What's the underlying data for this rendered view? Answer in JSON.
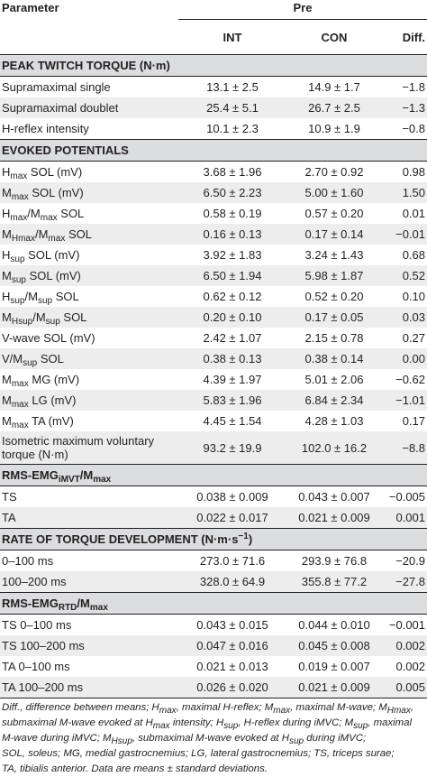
{
  "header": {
    "parameter": "Parameter",
    "pre": "Pre",
    "int": "INT",
    "con": "CON",
    "diff": "Diff."
  },
  "sections": {
    "peak": "PEAK TWITCH TORQUE (N·m)",
    "evoked": "EVOKED POTENTIALS",
    "rms_imvt": {
      "a": "RMS-EMG",
      "sub": "iMVT",
      "b": "/M",
      "sub2": "max"
    },
    "rtd": {
      "a": "RATE OF TORQUE DEVELOPMENT (N·m·s",
      "sup": "−1",
      "b": ")"
    },
    "rms_rtd": {
      "a": "RMS-EMG",
      "sub": "RTD",
      "b": "/M",
      "sub2": "max"
    }
  },
  "rows": {
    "r1": {
      "label": "Supramaximal single",
      "int": "13.1 ± 2.5",
      "con": "14.9 ± 1.7",
      "diff": "−1.8"
    },
    "r2": {
      "label": "Supramaximal doublet",
      "int": "25.4 ± 5.1",
      "con": "26.7 ± 2.5",
      "diff": "−1.3"
    },
    "r3": {
      "label": "H-reflex intensity",
      "int": "10.1 ± 2.3",
      "con": "10.9 ± 1.9",
      "diff": "−0.8"
    },
    "r4": {
      "pre": "H",
      "sub": "max",
      "post": " SOL (mV)",
      "int": "3.68 ± 1.96",
      "con": "2.70 ± 0.92",
      "diff": "0.98"
    },
    "r5": {
      "pre": "M",
      "sub": "max",
      "post": " SOL (mV)",
      "int": "6.50 ± 2.23",
      "con": "5.00 ± 1.60",
      "diff": "1.50"
    },
    "r6": {
      "pre": "H",
      "sub": "max",
      "mid": "/M",
      "sub2": "max",
      "post": " SOL",
      "int": "0.58 ± 0.19",
      "con": "0.57 ± 0.20",
      "diff": "0.01"
    },
    "r7": {
      "pre": "M",
      "sub": "Hmax",
      "mid": "/M",
      "sub2": "max",
      "post": " SOL",
      "int": "0.16 ± 0.13",
      "con": "0.17 ± 0.14",
      "diff": "−0.01"
    },
    "r8": {
      "pre": "H",
      "sub": "sup",
      "post": " SOL (mV)",
      "int": "3.92 ± 1.83",
      "con": "3.24 ± 1.43",
      "diff": "0.68"
    },
    "r9": {
      "pre": "M",
      "sub": "sup",
      "post": " SOL (mV)",
      "int": "6.50 ± 1.94",
      "con": "5.98 ± 1.87",
      "diff": "0.52"
    },
    "r10": {
      "pre": "H",
      "sub": "sup",
      "mid": "/M",
      "sub2": "sup",
      "post": " SOL",
      "int": "0.62 ± 0.12",
      "con": "0.52 ± 0.20",
      "diff": "0.10"
    },
    "r11": {
      "pre": "M",
      "sub": "Hsup",
      "mid": "/M",
      "sub2": "sup",
      "post": " SOL",
      "int": "0.20 ± 0.10",
      "con": "0.17 ± 0.05",
      "diff": "0.03"
    },
    "r12": {
      "label": "V-wave SOL (mV)",
      "int": "2.42 ± 1.07",
      "con": "2.15 ± 0.78",
      "diff": "0.27"
    },
    "r13": {
      "pre": "V/M",
      "sub": "sup",
      "post": " SOL",
      "int": "0.38 ± 0.13",
      "con": "0.38 ± 0.14",
      "diff": "0.00"
    },
    "r14": {
      "pre": "M",
      "sub": "max",
      "post": " MG (mV)",
      "int": "4.39 ± 1.97",
      "con": "5.01 ± 2.06",
      "diff": "−0.62"
    },
    "r15": {
      "pre": "M",
      "sub": "max",
      "post": " LG (mV)",
      "int": "5.83 ± 1.96",
      "con": "6.84 ± 2.34",
      "diff": "−1.01"
    },
    "r16": {
      "pre": "M",
      "sub": "max",
      "post": " TA (mV)",
      "int": "4.45 ± 1.54",
      "con": "4.28 ± 1.03",
      "diff": "0.17"
    },
    "r17": {
      "label": "Isometric maximum voluntary torque (N·m)",
      "int": "93.2 ± 19.9",
      "con": "102.0 ± 16.2",
      "diff": "−8.8"
    },
    "r18": {
      "label": "TS",
      "int": "0.038 ± 0.009",
      "con": "0.043 ± 0.007",
      "diff": "−0.005"
    },
    "r19": {
      "label": "TA",
      "int": "0.022 ± 0.017",
      "con": "0.021 ± 0.009",
      "diff": "0.001"
    },
    "r20": {
      "label": "0–100 ms",
      "int": "273.0 ± 71.6",
      "con": "293.9 ± 76.8",
      "diff": "−20.9"
    },
    "r21": {
      "label": "100–200 ms",
      "int": "328.0 ± 64.9",
      "con": "355.8 ± 77.2",
      "diff": "−27.8"
    },
    "r22": {
      "label": "TS 0–100 ms",
      "int": "0.043 ± 0.015",
      "con": "0.044 ± 0.010",
      "diff": "−0.001"
    },
    "r23": {
      "label": "TS 100–200 ms",
      "int": "0.047 ± 0.016",
      "con": "0.045 ± 0.008",
      "diff": "0.002"
    },
    "r24": {
      "label": "TA 0–100 ms",
      "int": "0.021 ± 0.013",
      "con": "0.019 ± 0.007",
      "diff": "0.002"
    },
    "r25": {
      "label": "TA 100–200 ms",
      "int": "0.026 ± 0.020",
      "con": "0.021 ± 0.009",
      "diff": "0.005"
    }
  },
  "footnote": {
    "l1": "Diff., difference between means; H",
    "l1s1": "max",
    "l1b": ", maximal H-reflex; M",
    "l1s2": "max",
    "l1c": ", maximal M-wave; M",
    "l1s3": "Hmax",
    "l1d": ",",
    "l2": "submaximal M-wave evoked at H",
    "l2s1": "max",
    "l2b": " intensity; H",
    "l2s2": "sup",
    "l2c": ", H-reflex during iMVC; M",
    "l2s3": "sup",
    "l2d": ", maximal",
    "l3": "M-wave during iMVC; M",
    "l3s1": "Hsup",
    "l3b": ", submaximal M-wave evoked at H",
    "l3s2": "sup",
    "l3c": " during iMVC;",
    "l4": "SOL, soleus; MG, medial gastrocnemius; LG, lateral gastrocnemius; TS, triceps surae;",
    "l5": "TA, tibialis anterior. Data are means ± standard deviations."
  }
}
